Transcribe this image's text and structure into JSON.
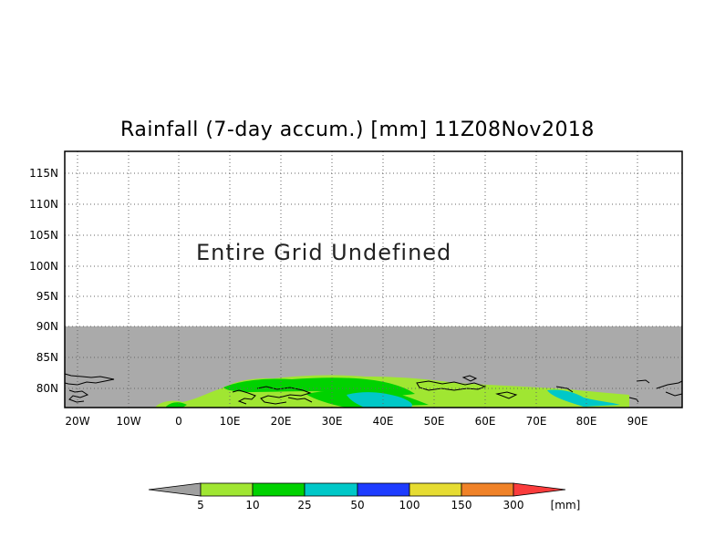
{
  "title": "Rainfall (7-day accum.) [mm] 11Z08Nov2018",
  "overlay_text": "Entire Grid Undefined",
  "map": {
    "lat_labels": [
      "115N",
      "110N",
      "105N",
      "100N",
      "95N",
      "90N",
      "85N",
      "80N"
    ],
    "lon_labels": [
      "20W",
      "10W",
      "0",
      "10E",
      "20E",
      "30E",
      "40E",
      "50E",
      "60E",
      "70E",
      "80E",
      "90E"
    ],
    "undefined_color": "#aaaaaa",
    "frame_color": "#000000",
    "grid_style": "dotted"
  },
  "colorbar": {
    "unit": "[mm]",
    "ticks": [
      "5",
      "10",
      "25",
      "50",
      "100",
      "150",
      "300"
    ],
    "colors": [
      "#a0a0a0",
      "#a0e632",
      "#00d200",
      "#00c8c8",
      "#1e3cff",
      "#e6dc32",
      "#f08228",
      "#fa3c3c"
    ]
  }
}
